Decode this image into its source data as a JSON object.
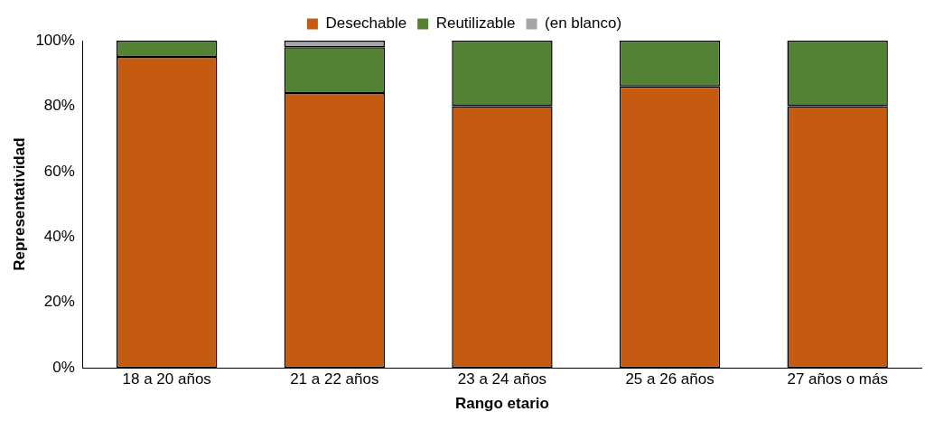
{
  "chart_data": {
    "type": "bar",
    "stacked": true,
    "xlabel": "Rango etario",
    "ylabel": "Representatividad",
    "categories": [
      "18 a 20 años",
      "21 a 22 años",
      "23 a 24 años",
      "25 a 26 años",
      "27 años o más"
    ],
    "series": [
      {
        "name": "Desechable",
        "color": "#c55a11",
        "values": [
          95,
          84,
          80,
          86,
          80
        ]
      },
      {
        "name": "Reutilizable",
        "color": "#548235",
        "values": [
          5,
          14,
          20,
          14,
          20
        ]
      },
      {
        "name": "(en blanco)",
        "color": "#a6a6a6",
        "values": [
          0,
          2,
          0,
          0,
          0
        ]
      }
    ],
    "ylim": [
      0,
      100
    ],
    "yticks": [
      {
        "value": 0,
        "label": "0%"
      },
      {
        "value": 20,
        "label": "20%"
      },
      {
        "value": 40,
        "label": "40%"
      },
      {
        "value": 60,
        "label": "60%"
      },
      {
        "value": 80,
        "label": "80%"
      },
      {
        "value": 100,
        "label": "100%"
      }
    ],
    "grid": false,
    "legend": "top"
  }
}
